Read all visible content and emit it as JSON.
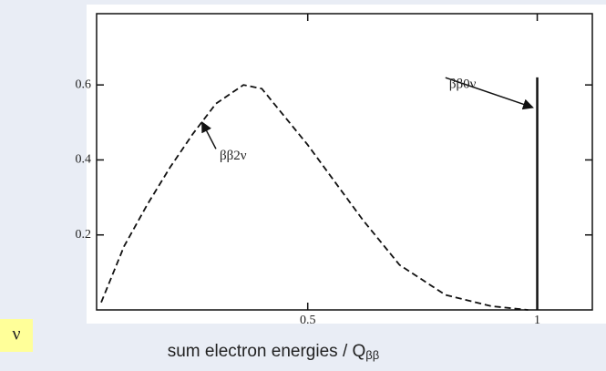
{
  "chart_data": {
    "type": "line",
    "x_label": {
      "text": "sum electron energies / Q",
      "sub": "ββ"
    },
    "corner_label": "ν",
    "series": [
      {
        "color": "#111111",
        "dash": true,
        "x": [
          0.05,
          0.1,
          0.15,
          0.2,
          0.25,
          0.3,
          0.36,
          0.4,
          0.5,
          0.62,
          0.7,
          0.8,
          0.9,
          0.98
        ],
        "values": [
          0.02,
          0.17,
          0.28,
          0.38,
          0.47,
          0.55,
          0.6,
          0.59,
          0.44,
          0.24,
          0.12,
          0.04,
          0.01,
          0
        ]
      },
      {
        "color": "#111111",
        "dash": false,
        "x": [
          1,
          1
        ],
        "values": [
          0,
          0.62
        ]
      }
    ],
    "annotations": [
      {
        "text": "ββ2ν",
        "x": 0.3,
        "y": 0.41,
        "arrow_x": 0.27,
        "arrow_y": 0.5
      },
      {
        "text": "ββ0ν",
        "x": 0.8,
        "y": 0.6,
        "arrow_x": 0.99,
        "arrow_y": 0.54
      }
    ],
    "xlim": [
      0.04,
      1.12
    ],
    "ylim": [
      0,
      0.79
    ],
    "xticks": [
      0.5,
      1
    ],
    "yticks": [
      0.2,
      0.4,
      0.6
    ]
  }
}
